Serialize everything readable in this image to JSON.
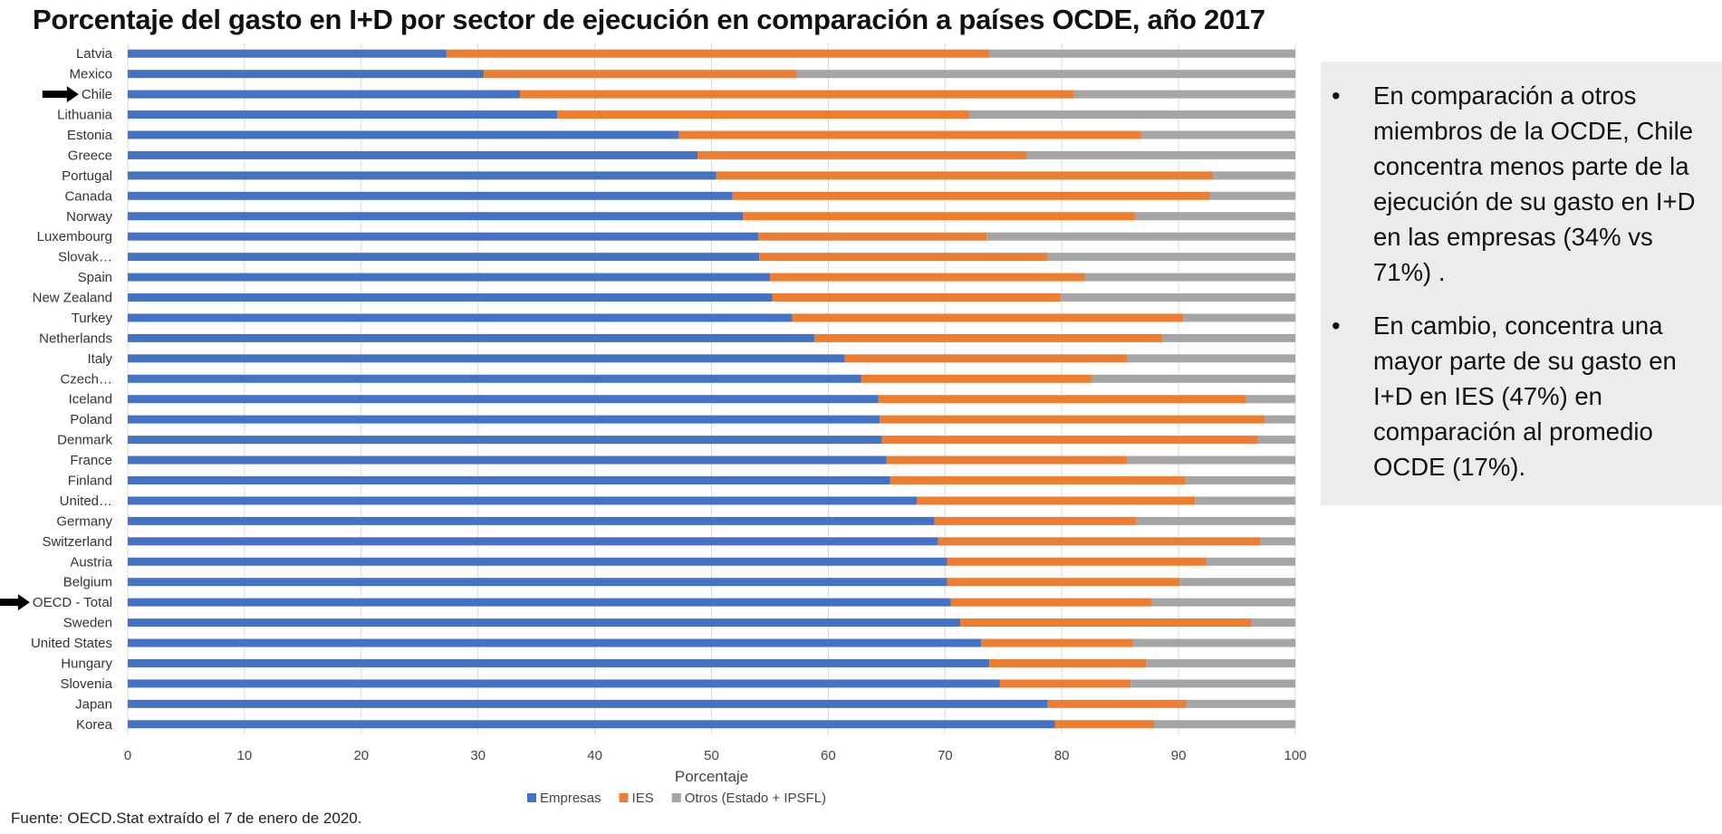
{
  "title": "Porcentaje del gasto en I+D por sector de ejecución en comparación a países OCDE, año 2017",
  "source": "Fuente: OECD.Stat extraído el 7 de enero de 2020.",
  "side_panel": {
    "bullets": [
      "En comparación a otros miembros de la OCDE, Chile concentra menos parte de la ejecución de su gasto en I+D en las empresas (34% vs 71%) .",
      "En cambio, concentra una mayor parte de su gasto en I+D en IES (47%) en comparación al promedio OCDE (17%)."
    ]
  },
  "chart_data": {
    "type": "bar",
    "orientation": "horizontal",
    "stacked": true,
    "xlabel": "Porcentaje",
    "ylabel": "",
    "xlim": [
      0,
      100
    ],
    "xticks": [
      0,
      10,
      20,
      30,
      40,
      50,
      60,
      70,
      80,
      90,
      100
    ],
    "grid": true,
    "legend_position": "bottom",
    "highlighted_categories": [
      "Chile",
      "OECD - Total"
    ],
    "categories": [
      "Latvia",
      "Mexico",
      "Chile",
      "Lithuania",
      "Estonia",
      "Greece",
      "Portugal",
      "Canada",
      "Norway",
      "Luxembourg",
      "Slovak…",
      "Spain",
      "New Zealand",
      "Turkey",
      "Netherlands",
      "Italy",
      "Czech…",
      "Iceland",
      "Poland",
      "Denmark",
      "France",
      "Finland",
      "United…",
      "Germany",
      "Switzerland",
      "Austria",
      "Belgium",
      "OECD - Total",
      "Sweden",
      "United States",
      "Hungary",
      "Slovenia",
      "Japan",
      "Korea"
    ],
    "series": [
      {
        "name": "Empresas",
        "color": "#4472c4",
        "values": [
          27.3,
          30.5,
          33.6,
          36.8,
          47.2,
          48.8,
          50.4,
          51.8,
          52.7,
          54.0,
          54.1,
          55.0,
          55.2,
          56.9,
          58.8,
          61.4,
          62.8,
          64.3,
          64.4,
          64.6,
          65.0,
          65.3,
          67.6,
          69.1,
          69.4,
          70.2,
          70.2,
          70.5,
          71.3,
          73.1,
          73.8,
          74.7,
          78.8,
          79.4
        ]
      },
      {
        "name": "IES",
        "color": "#ed7d31",
        "values": [
          46.5,
          26.8,
          47.4,
          35.3,
          39.6,
          28.2,
          42.5,
          40.9,
          33.6,
          19.6,
          24.7,
          27.0,
          24.7,
          33.5,
          29.8,
          24.2,
          19.8,
          31.5,
          33.0,
          32.2,
          20.6,
          25.3,
          23.8,
          17.3,
          27.6,
          22.2,
          19.9,
          17.2,
          25.0,
          13.0,
          13.4,
          11.2,
          11.9,
          8.5
        ]
      },
      {
        "name": "Otros (Estado + IPSFL)",
        "color": "#a5a5a5",
        "values": [
          26.2,
          42.7,
          19.0,
          27.9,
          13.2,
          23.0,
          7.1,
          7.3,
          13.7,
          26.4,
          21.2,
          18.0,
          20.1,
          9.6,
          11.4,
          14.4,
          17.4,
          4.2,
          2.6,
          3.2,
          14.4,
          9.4,
          8.6,
          13.6,
          3.0,
          7.6,
          9.9,
          12.3,
          3.7,
          13.9,
          12.8,
          14.1,
          9.3,
          12.1
        ]
      }
    ]
  }
}
